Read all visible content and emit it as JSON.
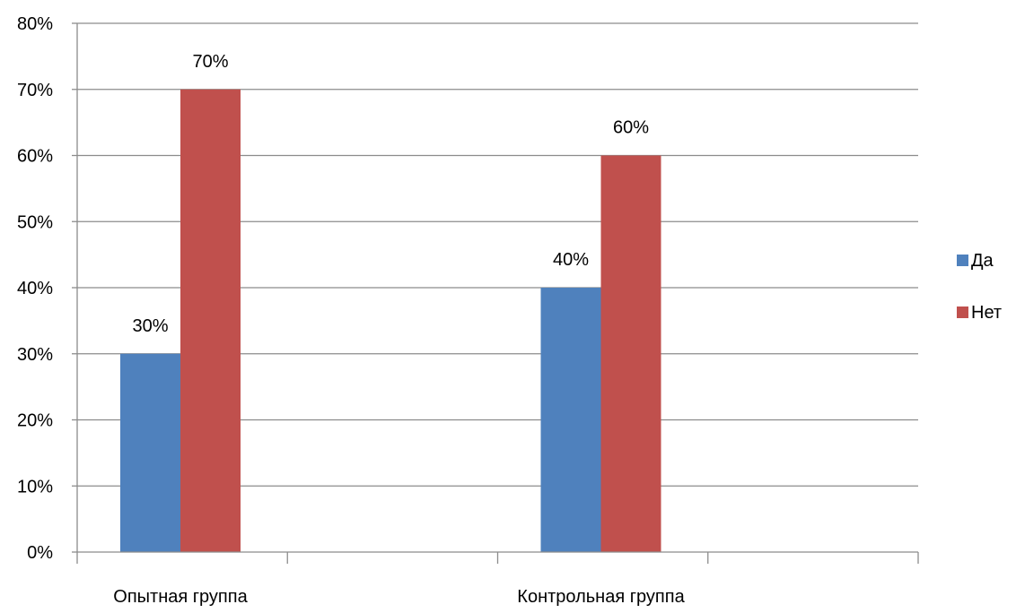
{
  "chart_data": {
    "type": "bar",
    "title": "",
    "xlabel": "",
    "ylabel": "",
    "categories": [
      "Опытная группа",
      "Контрольная группа"
    ],
    "series": [
      {
        "name": "Да",
        "values": [
          30,
          40
        ],
        "color": "#4f81bd"
      },
      {
        "name": "Нет",
        "values": [
          70,
          60
        ],
        "color": "#c0504d"
      }
    ],
    "data_labels": [
      [
        "30%",
        "40%"
      ],
      [
        "70%",
        "60%"
      ]
    ],
    "ylim": [
      0,
      80
    ],
    "y_ticks": [
      "0%",
      "10%",
      "20%",
      "30%",
      "40%",
      "50%",
      "60%",
      "70%",
      "80%"
    ],
    "grid": true,
    "legend_position": "right"
  }
}
